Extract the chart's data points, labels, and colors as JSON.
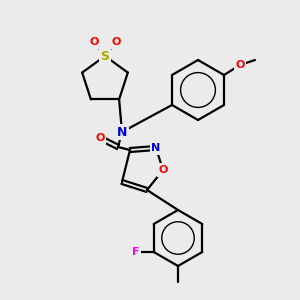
{
  "bg_color": "#ebebeb",
  "bond_color": "#000000",
  "bond_width": 1.6,
  "atom_colors": {
    "N": "#0000cc",
    "O": "#ff0000",
    "S": "#aaaa00",
    "F": "#ff00ff",
    "C": "#000000"
  },
  "font_size": 8,
  "figsize": [
    3.0,
    3.0
  ],
  "dpi": 100
}
